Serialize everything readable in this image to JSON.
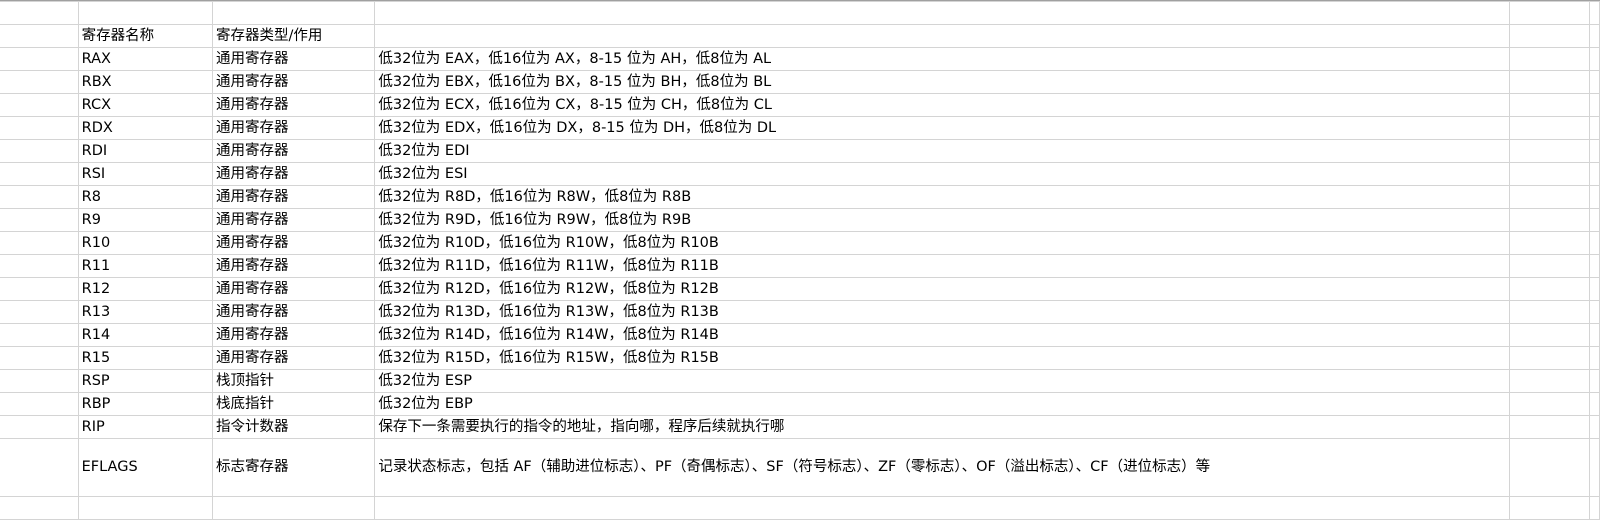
{
  "header": {
    "name": "寄存器名称",
    "type": "寄存器类型/作用",
    "desc": ""
  },
  "rows": [
    {
      "name": "RAX",
      "type": "通用寄存器",
      "desc": "低32位为 EAX，低16位为 AX，8-15 位为 AH，低8位为 AL"
    },
    {
      "name": "RBX",
      "type": "通用寄存器",
      "desc": "低32位为 EBX，低16位为 BX，8-15 位为 BH，低8位为 BL"
    },
    {
      "name": "RCX",
      "type": "通用寄存器",
      "desc": "低32位为 ECX，低16位为 CX，8-15 位为 CH，低8位为 CL"
    },
    {
      "name": "RDX",
      "type": "通用寄存器",
      "desc": "低32位为 EDX，低16位为 DX，8-15 位为 DH，低8位为 DL"
    },
    {
      "name": "RDI",
      "type": "通用寄存器",
      "desc": "低32位为 EDI"
    },
    {
      "name": "RSI",
      "type": "通用寄存器",
      "desc": "低32位为 ESI"
    },
    {
      "name": "R8",
      "type": "通用寄存器",
      "desc": "低32位为 R8D，低16位为 R8W，低8位为 R8B"
    },
    {
      "name": "R9",
      "type": "通用寄存器",
      "desc": "低32位为 R9D，低16位为 R9W，低8位为 R9B"
    },
    {
      "name": "R10",
      "type": "通用寄存器",
      "desc": "低32位为 R10D，低16位为 R10W，低8位为 R10B"
    },
    {
      "name": "R11",
      "type": "通用寄存器",
      "desc": "低32位为 R11D，低16位为 R11W，低8位为 R11B"
    },
    {
      "name": "R12",
      "type": "通用寄存器",
      "desc": "低32位为 R12D，低16位为 R12W，低8位为 R12B"
    },
    {
      "name": "R13",
      "type": "通用寄存器",
      "desc": "低32位为 R13D，低16位为 R13W，低8位为 R13B"
    },
    {
      "name": "R14",
      "type": "通用寄存器",
      "desc": "低32位为 R14D，低16位为 R14W，低8位为 R14B"
    },
    {
      "name": "R15",
      "type": "通用寄存器",
      "desc": "低32位为 R15D，低16位为 R15W，低8位为 R15B"
    },
    {
      "name": "RSP",
      "type": "栈顶指针",
      "desc": "低32位为 ESP"
    },
    {
      "name": "RBP",
      "type": "栈底指针",
      "desc": "低32位为 EBP"
    },
    {
      "name": "RIP",
      "type": "指令计数器",
      "desc": "保存下一条需要执行的指令的地址，指向哪，程序后续就执行哪"
    },
    {
      "name": "EFLAGS",
      "type": "标志寄存器",
      "desc": "记录状态标志，包括 AF（辅助进位标志）、PF（奇偶标志）、SF（符号标志）、ZF（零标志）、OF（溢出标志）、CF（进位标志）等"
    }
  ]
}
